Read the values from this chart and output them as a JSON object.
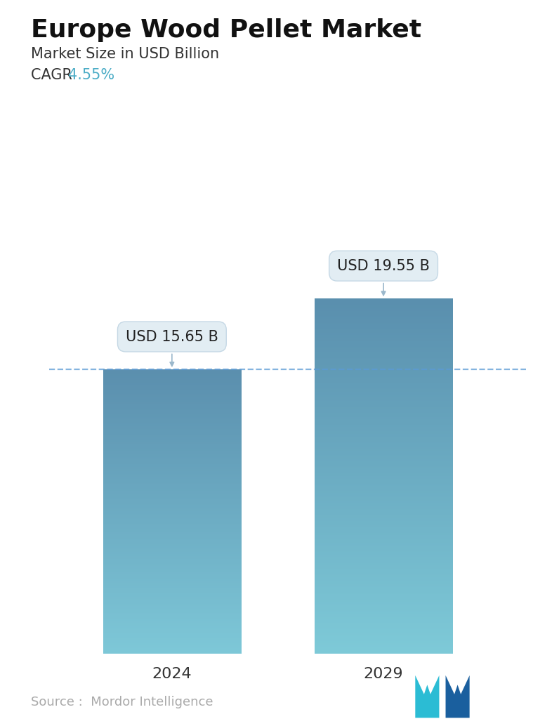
{
  "title": "Europe Wood Pellet Market",
  "subtitle": "Market Size in USD Billion",
  "cagr_label": "CAGR ",
  "cagr_value": "4.55%",
  "cagr_color": "#4BACC6",
  "categories": [
    "2024",
    "2029"
  ],
  "values": [
    15.65,
    19.55
  ],
  "bar_labels": [
    "USD 15.65 B",
    "USD 19.55 B"
  ],
  "bar_top_color_1": "#5B8FAE",
  "bar_bottom_color_1": "#7EC8D8",
  "bar_top_color_2": "#5A8FAE",
  "bar_bottom_color_2": "#7ECAD8",
  "dashed_line_color": "#5B9BD5",
  "dashed_line_value": 15.65,
  "source_text": "Source :  Mordor Intelligence",
  "source_color": "#AAAAAA",
  "background_color": "#FFFFFF",
  "title_fontsize": 26,
  "subtitle_fontsize": 15,
  "cagr_fontsize": 15,
  "label_fontsize": 15,
  "tick_fontsize": 16,
  "source_fontsize": 13,
  "ylim": [
    0,
    24
  ],
  "bar_width": 0.28,
  "x_positions": [
    0.27,
    0.7
  ],
  "annotation_facecolor": "#E2EDF3",
  "annotation_edgecolor": "#C5D8E5"
}
